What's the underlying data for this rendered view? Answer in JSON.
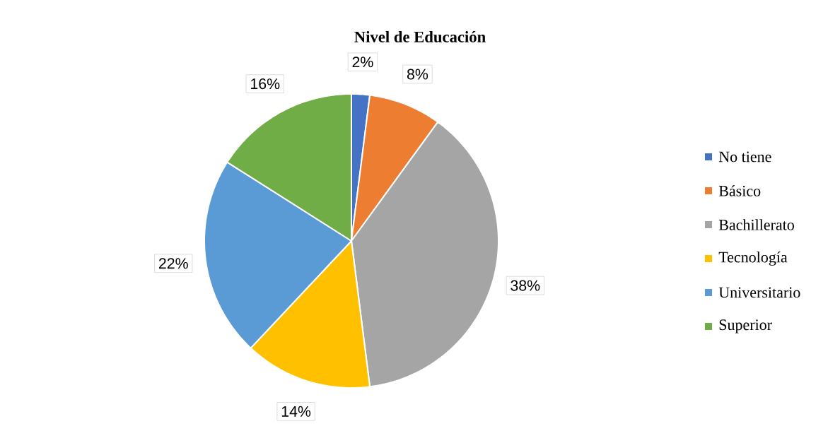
{
  "chart_data": {
    "type": "pie",
    "title": "Nivel de Educación",
    "categories": [
      "No tiene",
      "Básico",
      "Bachillerato",
      "Tecnología",
      "Universitario",
      "Superior"
    ],
    "values": [
      2,
      8,
      38,
      14,
      22,
      16
    ],
    "colors": [
      "#4472c4",
      "#ed7d31",
      "#a5a5a5",
      "#ffc000",
      "#5b9bd5",
      "#70ad47"
    ],
    "value_labels": [
      "2%",
      "8%",
      "38%",
      "14%",
      "22%",
      "16%"
    ],
    "legend": "right"
  }
}
